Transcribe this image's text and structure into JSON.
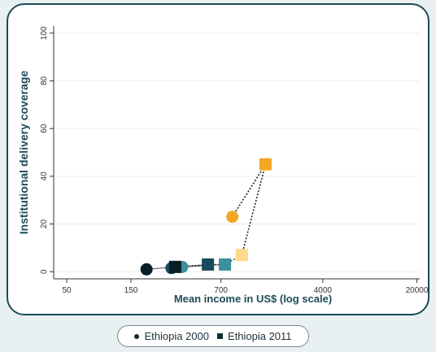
{
  "chart_data": {
    "type": "scatter",
    "xlabel": "Mean income in US$ (log scale)",
    "ylabel": "Institutional delivery coverage",
    "xscale": "log",
    "xlim": [
      40,
      21000
    ],
    "ylim": [
      -3,
      103
    ],
    "xticks": [
      50,
      150,
      700,
      4000,
      20000
    ],
    "yticks": [
      0,
      20,
      40,
      60,
      80,
      100
    ],
    "grid": "horizontal",
    "series": [
      {
        "name": "Ethiopia 2000",
        "marker": "circle",
        "points": [
          {
            "x": 196,
            "y": 1,
            "color": "#0b1d26"
          },
          {
            "x": 300,
            "y": 1.5,
            "color": "#1a4b5c"
          },
          {
            "x": 360,
            "y": 2,
            "color": "#3a8f9a"
          },
          {
            "x": 850,
            "y": 23,
            "color": "#f5a623"
          }
        ]
      },
      {
        "name": "Ethiopia 2011",
        "marker": "square",
        "points": [
          {
            "x": 320,
            "y": 2,
            "color": "#0b1d26"
          },
          {
            "x": 560,
            "y": 3,
            "color": "#1a4b5c"
          },
          {
            "x": 750,
            "y": 3,
            "color": "#3a8f9a"
          },
          {
            "x": 1000,
            "y": 7,
            "color": "#ffd98e"
          },
          {
            "x": 1500,
            "y": 45,
            "color": "#f5a623"
          }
        ]
      }
    ],
    "legend": {
      "placement": "bottom",
      "items": [
        {
          "label": "Ethiopia 2000",
          "marker": "circle"
        },
        {
          "label": "Ethiopia 2011",
          "marker": "square"
        }
      ]
    }
  }
}
